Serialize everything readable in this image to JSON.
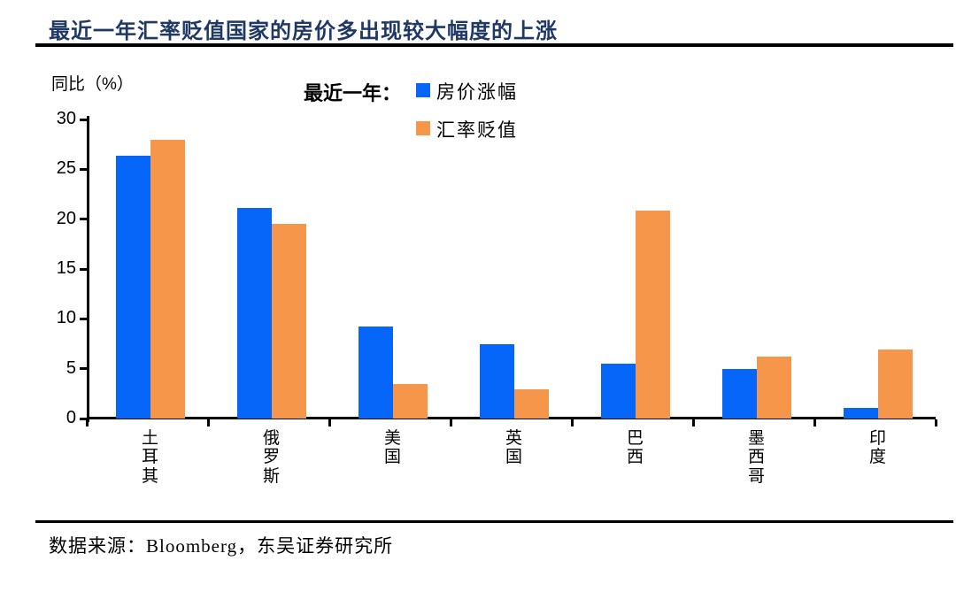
{
  "title": "最近一年汇率贬值国家的房价多出现较大幅度的上涨",
  "y_axis_unit": "同比（%）",
  "legend": {
    "prefix": "最近一年：",
    "items": [
      {
        "label": "房价涨幅",
        "color": "#0566F9"
      },
      {
        "label": "汇率贬值",
        "color": "#F6964B"
      }
    ]
  },
  "source": "数据来源：Bloomberg，东吴证券研究所",
  "colors": {
    "title": "#1F3864",
    "house_price_bar": "#0566F9",
    "fx_depreciation_bar": "#F6964B",
    "axis": "#000000"
  },
  "chart_data": {
    "type": "bar",
    "categories": [
      "土耳其",
      "俄罗斯",
      "美国",
      "英国",
      "巴西",
      "墨西哥",
      "印度"
    ],
    "category_names_en": [
      "turkey",
      "russia",
      "usa",
      "uk",
      "brazil",
      "mexico",
      "india"
    ],
    "series": [
      {
        "name": "房价涨幅",
        "color": "#0566F9",
        "values": [
          26.4,
          21.1,
          9.2,
          7.5,
          5.5,
          5.0,
          1.1
        ]
      },
      {
        "name": "汇率贬值",
        "color": "#F6964B",
        "values": [
          28.0,
          19.5,
          3.5,
          2.9,
          20.9,
          6.2,
          6.9
        ]
      }
    ],
    "title": "最近一年汇率贬值国家的房价多出现较大幅度的上涨",
    "xlabel": "",
    "ylabel": "同比（%）",
    "ylim": [
      0,
      30
    ],
    "yticks": [
      0,
      5,
      10,
      15,
      20,
      25,
      30
    ],
    "grid": false,
    "legend_position": "top-center"
  }
}
